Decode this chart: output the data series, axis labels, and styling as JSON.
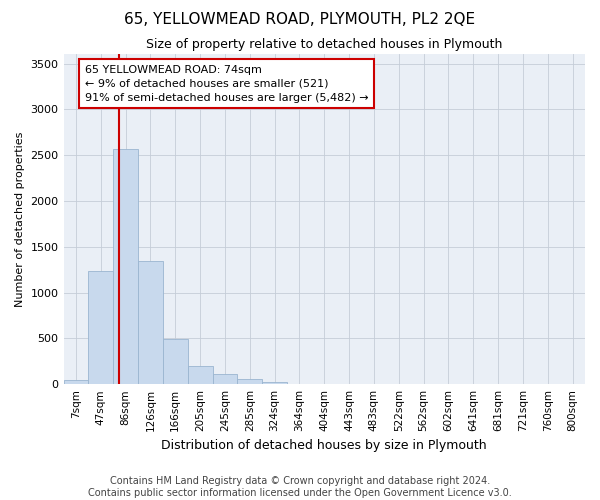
{
  "title": "65, YELLOWMEAD ROAD, PLYMOUTH, PL2 2QE",
  "subtitle": "Size of property relative to detached houses in Plymouth",
  "xlabel": "Distribution of detached houses by size in Plymouth",
  "ylabel": "Number of detached properties",
  "footer_line1": "Contains HM Land Registry data © Crown copyright and database right 2024.",
  "footer_line2": "Contains public sector information licensed under the Open Government Licence v3.0.",
  "bin_labels": [
    "7sqm",
    "47sqm",
    "86sqm",
    "126sqm",
    "166sqm",
    "205sqm",
    "245sqm",
    "285sqm",
    "324sqm",
    "364sqm",
    "404sqm",
    "443sqm",
    "483sqm",
    "522sqm",
    "562sqm",
    "602sqm",
    "641sqm",
    "681sqm",
    "721sqm",
    "760sqm",
    "800sqm"
  ],
  "bar_heights": [
    45,
    1240,
    2570,
    1340,
    490,
    200,
    115,
    55,
    20,
    5,
    2,
    0,
    0,
    0,
    0,
    0,
    0,
    0,
    0,
    0,
    0
  ],
  "bar_color": "#c8d9ed",
  "bar_edge_color": "#9ab5d0",
  "grid_color": "#c5cdd8",
  "background_color": "#eaeff6",
  "red_line_x": 1.72,
  "annotation_text_line1": "65 YELLOWMEAD ROAD: 74sqm",
  "annotation_text_line2": "← 9% of detached houses are smaller (521)",
  "annotation_text_line3": "91% of semi-detached houses are larger (5,482) →",
  "annotation_box_facecolor": "#ffffff",
  "annotation_box_edgecolor": "#cc0000",
  "ylim": [
    0,
    3600
  ],
  "yticks": [
    0,
    500,
    1000,
    1500,
    2000,
    2500,
    3000,
    3500
  ],
  "title_fontsize": 11,
  "subtitle_fontsize": 9,
  "xlabel_fontsize": 9,
  "ylabel_fontsize": 8,
  "tick_fontsize": 8,
  "xtick_fontsize": 7.5,
  "annotation_fontsize": 8,
  "footer_fontsize": 7
}
